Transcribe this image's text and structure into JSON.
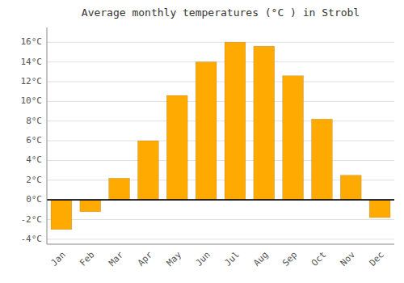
{
  "chart_data": {
    "type": "bar",
    "title": "Average monthly temperatures (°C ) in Strobl",
    "categories": [
      "Jan",
      "Feb",
      "Mar",
      "Apr",
      "May",
      "Jun",
      "Jul",
      "Aug",
      "Sep",
      "Oct",
      "Nov",
      "Dec"
    ],
    "values": [
      -3.0,
      -1.2,
      2.2,
      6.0,
      10.6,
      14.0,
      16.0,
      15.6,
      12.6,
      8.2,
      2.5,
      -1.8
    ],
    "color": "#FFAA00",
    "ylim": [
      -4.5,
      17.5
    ],
    "yticks": [
      {
        "value": -4,
        "label": "-4°C"
      },
      {
        "value": -2,
        "label": "-2°C"
      },
      {
        "value": 0,
        "label": "0°C"
      },
      {
        "value": 2,
        "label": "2°C"
      },
      {
        "value": 4,
        "label": "4°C"
      },
      {
        "value": 6,
        "label": "6°C"
      },
      {
        "value": 8,
        "label": "8°C"
      },
      {
        "value": 10,
        "label": "10°C"
      },
      {
        "value": 12,
        "label": "12°C"
      },
      {
        "value": 14,
        "label": "14°C"
      },
      {
        "value": 16,
        "label": "16°C"
      }
    ],
    "grid": true
  }
}
